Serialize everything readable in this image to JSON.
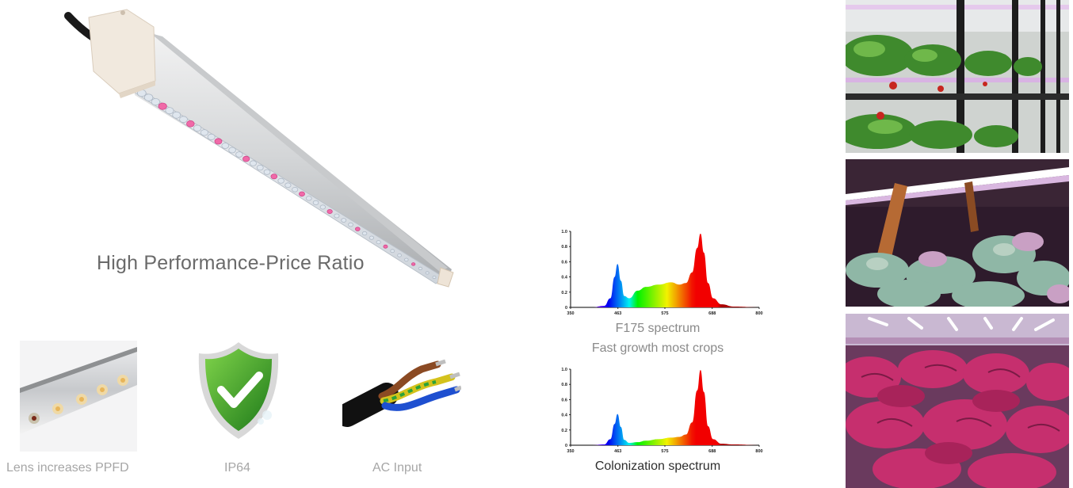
{
  "headline": "High Performance-Price Ratio",
  "features": [
    {
      "label": "Lens increases PPFD",
      "icon": "lens-closeup-icon"
    },
    {
      "label": "IP64",
      "icon": "shield-check-icon"
    },
    {
      "label": "AC Input",
      "icon": "power-cable-icon"
    }
  ],
  "spectra": [
    {
      "caption_line1": "F175 spectrum",
      "caption_line2": "Fast growth most crops"
    },
    {
      "caption_line1": "Colonization spectrum"
    }
  ],
  "chart_data": [
    {
      "type": "area",
      "title": "",
      "x_ticks": [
        350,
        463,
        575,
        688,
        800
      ],
      "y_ticks": [
        "0",
        "0.2",
        "0.4",
        "0.6",
        "0.8",
        "1.0"
      ],
      "xlim": [
        350,
        800
      ],
      "ylim": [
        0,
        1.0
      ],
      "x": [
        350,
        400,
        430,
        445,
        455,
        462,
        470,
        478,
        490,
        510,
        530,
        560,
        590,
        610,
        625,
        640,
        652,
        660,
        668,
        678,
        690,
        710,
        740,
        800
      ],
      "y": [
        0,
        0,
        0.02,
        0.12,
        0.4,
        0.57,
        0.35,
        0.15,
        0.12,
        0.22,
        0.27,
        0.3,
        0.33,
        0.3,
        0.32,
        0.46,
        0.78,
        0.97,
        0.72,
        0.32,
        0.12,
        0.04,
        0.01,
        0
      ]
    },
    {
      "type": "area",
      "title": "",
      "x_ticks": [
        350,
        463,
        575,
        688,
        800
      ],
      "y_ticks": [
        "0",
        "0.2",
        "0.4",
        "0.6",
        "0.8",
        "1.0"
      ],
      "xlim": [
        350,
        800
      ],
      "ylim": [
        0,
        1.0
      ],
      "x": [
        350,
        400,
        430,
        445,
        455,
        462,
        470,
        478,
        490,
        510,
        530,
        560,
        590,
        610,
        625,
        640,
        652,
        660,
        668,
        678,
        690,
        710,
        740,
        800
      ],
      "y": [
        0,
        0,
        0.01,
        0.08,
        0.28,
        0.41,
        0.24,
        0.07,
        0.03,
        0.04,
        0.06,
        0.08,
        0.1,
        0.11,
        0.14,
        0.3,
        0.72,
        0.99,
        0.7,
        0.25,
        0.08,
        0.02,
        0.01,
        0
      ]
    }
  ],
  "photos": [
    {
      "icon": "strawberry-vertical-farm-photo"
    },
    {
      "icon": "succulents-grow-light-photo"
    },
    {
      "icon": "red-leaf-lettuce-photo"
    }
  ]
}
